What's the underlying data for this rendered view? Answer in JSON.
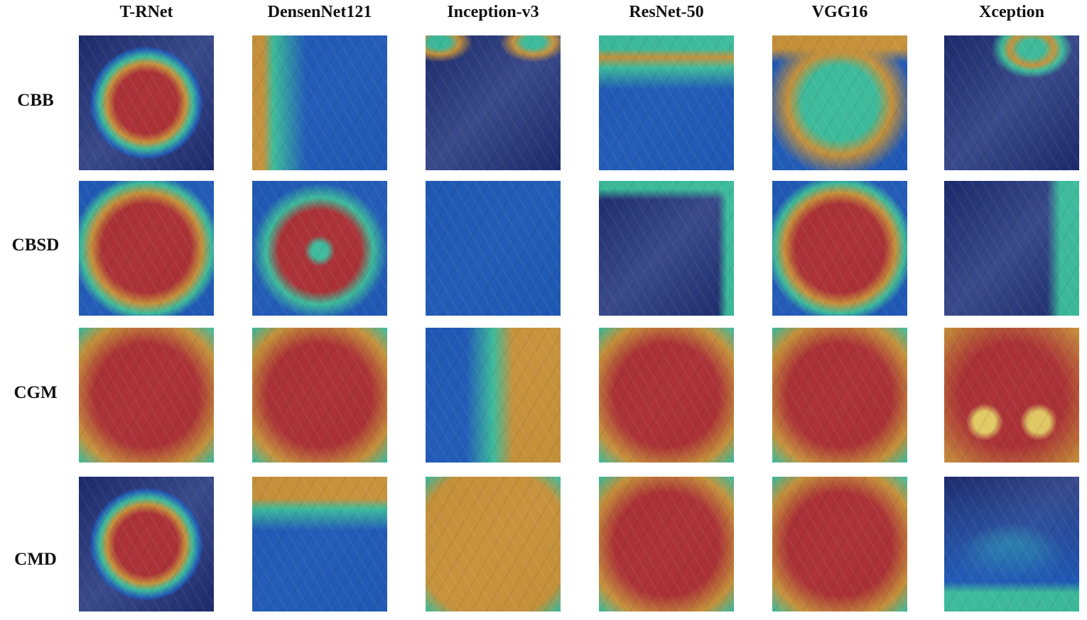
{
  "models": [
    "T-RNet",
    "DensenNet121",
    "Inception-v3",
    "ResNet-50",
    "VGG16",
    "Xception"
  ],
  "classes": [
    "CBB",
    "CBSD",
    "CGM",
    "CMD"
  ],
  "heatmaps": {
    "CBB": [
      {
        "focus": "center-box",
        "intensity": "high"
      },
      {
        "focus": "left-edge",
        "intensity": "medium"
      },
      {
        "focus": "top-corners",
        "intensity": "low"
      },
      {
        "focus": "top-band",
        "intensity": "low"
      },
      {
        "focus": "frame",
        "intensity": "medium"
      },
      {
        "focus": "top-right",
        "intensity": "low"
      }
    ],
    "CBSD": [
      {
        "focus": "full-box",
        "intensity": "high"
      },
      {
        "focus": "ring",
        "intensity": "high"
      },
      {
        "focus": "bottom-left",
        "intensity": "medium"
      },
      {
        "focus": "top-right-edge",
        "intensity": "low"
      },
      {
        "focus": "full-box",
        "intensity": "high"
      },
      {
        "focus": "right-edge",
        "intensity": "low"
      }
    ],
    "CGM": [
      {
        "focus": "full",
        "intensity": "high"
      },
      {
        "focus": "full",
        "intensity": "high"
      },
      {
        "focus": "right-half",
        "intensity": "medium"
      },
      {
        "focus": "full",
        "intensity": "high"
      },
      {
        "focus": "full",
        "intensity": "high"
      },
      {
        "focus": "full-spots",
        "intensity": "high"
      }
    ],
    "CMD": [
      {
        "focus": "center-box",
        "intensity": "high"
      },
      {
        "focus": "top-band",
        "intensity": "medium"
      },
      {
        "focus": "full",
        "intensity": "medium"
      },
      {
        "focus": "full",
        "intensity": "high"
      },
      {
        "focus": "full",
        "intensity": "high"
      },
      {
        "focus": "bottom-band",
        "intensity": "low"
      }
    ]
  },
  "colors": {
    "base_dark": "#1c2a6b",
    "hot": "#c0302a",
    "warm": "#e0a030",
    "mid": "#40d0a0",
    "cool": "#2060c0"
  }
}
